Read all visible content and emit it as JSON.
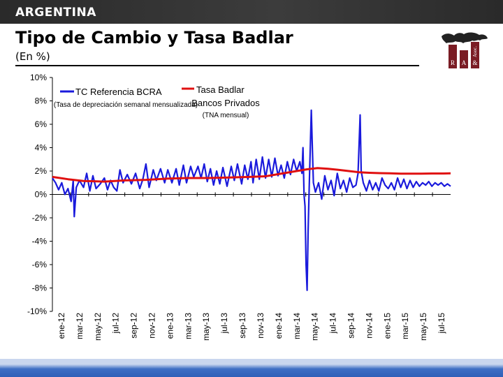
{
  "header": {
    "country": "ARGENTINA",
    "title": "Tipo de Cambio y Tasa Badlar",
    "subtitle": "(En %)"
  },
  "logo": {
    "letters": [
      "R",
      "A",
      "&",
      "Asoc."
    ]
  },
  "chart_data": {
    "type": "line",
    "title": "Tipo de Cambio y Tasa Badlar",
    "ylim": [
      -10,
      10
    ],
    "y_ticks": [
      "10%",
      "8%",
      "6%",
      "4%",
      "2%",
      "0%",
      "-2%",
      "-4%",
      "-6%",
      "-8%",
      "-10%"
    ],
    "y_tick_values": [
      10,
      8,
      6,
      4,
      2,
      0,
      -2,
      -4,
      -6,
      -8,
      -10
    ],
    "x_ticks": [
      "ene-12",
      "mar-12",
      "may-12",
      "jul-12",
      "sep-12",
      "nov-12",
      "ene-13",
      "mar-13",
      "may-13",
      "jul-13",
      "sep-13",
      "nov-13",
      "ene-14",
      "mar-14",
      "may-14",
      "jul-14",
      "sep-14",
      "nov-14",
      "ene-15",
      "mar-15",
      "may-15",
      "jul-15"
    ],
    "grid": false,
    "legend_position": "top-left",
    "series": [
      {
        "name": "TC Referencia BCRA",
        "note": "(Tasa de depreciación semanal mensualizada)",
        "color": "#1a1adc",
        "points": [
          [
            0.0,
            1.4
          ],
          [
            0.3,
            1.0
          ],
          [
            0.6,
            0.4
          ],
          [
            0.9,
            1.0
          ],
          [
            1.2,
            0.0
          ],
          [
            1.5,
            0.5
          ],
          [
            1.8,
            -0.6
          ],
          [
            2.0,
            1.2
          ],
          [
            2.1,
            -1.9
          ],
          [
            2.3,
            0.6
          ],
          [
            2.6,
            1.2
          ],
          [
            3.0,
            0.6
          ],
          [
            3.3,
            1.8
          ],
          [
            3.6,
            0.3
          ],
          [
            3.9,
            1.6
          ],
          [
            4.2,
            0.5
          ],
          [
            4.6,
            0.9
          ],
          [
            5.0,
            1.4
          ],
          [
            5.3,
            0.4
          ],
          [
            5.6,
            1.2
          ],
          [
            5.9,
            0.6
          ],
          [
            6.2,
            0.3
          ],
          [
            6.5,
            2.1
          ],
          [
            6.8,
            1.0
          ],
          [
            7.2,
            1.7
          ],
          [
            7.6,
            0.9
          ],
          [
            8.0,
            1.8
          ],
          [
            8.4,
            0.5
          ],
          [
            8.7,
            1.3
          ],
          [
            9.0,
            2.6
          ],
          [
            9.3,
            0.6
          ],
          [
            9.7,
            2.1
          ],
          [
            10.0,
            1.2
          ],
          [
            10.4,
            2.2
          ],
          [
            10.8,
            1.0
          ],
          [
            11.1,
            2.1
          ],
          [
            11.5,
            1.0
          ],
          [
            11.9,
            2.2
          ],
          [
            12.2,
            0.8
          ],
          [
            12.6,
            2.5
          ],
          [
            12.9,
            1.0
          ],
          [
            13.3,
            2.4
          ],
          [
            13.6,
            1.5
          ],
          [
            14.0,
            2.4
          ],
          [
            14.3,
            1.4
          ],
          [
            14.6,
            2.6
          ],
          [
            14.9,
            1.1
          ],
          [
            15.2,
            2.2
          ],
          [
            15.5,
            0.8
          ],
          [
            15.8,
            2.0
          ],
          [
            16.1,
            0.9
          ],
          [
            16.4,
            2.3
          ],
          [
            16.8,
            0.7
          ],
          [
            17.2,
            2.4
          ],
          [
            17.5,
            1.2
          ],
          [
            17.8,
            2.6
          ],
          [
            18.2,
            0.9
          ],
          [
            18.5,
            2.5
          ],
          [
            18.8,
            1.3
          ],
          [
            19.1,
            2.8
          ],
          [
            19.3,
            1.0
          ],
          [
            19.6,
            3.0
          ],
          [
            19.9,
            1.3
          ],
          [
            20.2,
            3.2
          ],
          [
            20.5,
            1.4
          ],
          [
            20.8,
            3.0
          ],
          [
            21.1,
            1.5
          ],
          [
            21.4,
            3.1
          ],
          [
            21.7,
            1.6
          ],
          [
            22.0,
            2.5
          ],
          [
            22.3,
            1.4
          ],
          [
            22.6,
            2.8
          ],
          [
            22.9,
            1.7
          ],
          [
            23.2,
            3.0
          ],
          [
            23.5,
            2.0
          ],
          [
            23.8,
            2.8
          ],
          [
            24.0,
            1.8
          ],
          [
            24.1,
            4.0
          ],
          [
            24.2,
            0.0
          ],
          [
            24.3,
            -1.0
          ],
          [
            24.4,
            -6.0
          ],
          [
            24.5,
            -8.2
          ],
          [
            24.6,
            -3.0
          ],
          [
            24.7,
            0.6
          ],
          [
            24.9,
            7.2
          ],
          [
            25.0,
            4.0
          ],
          [
            25.1,
            1.0
          ],
          [
            25.3,
            0.2
          ],
          [
            25.6,
            1.0
          ],
          [
            25.9,
            -0.4
          ],
          [
            26.2,
            1.6
          ],
          [
            26.5,
            0.4
          ],
          [
            26.8,
            1.2
          ],
          [
            27.1,
            -0.1
          ],
          [
            27.4,
            1.8
          ],
          [
            27.7,
            0.5
          ],
          [
            28.0,
            1.2
          ],
          [
            28.3,
            0.2
          ],
          [
            28.6,
            1.4
          ],
          [
            28.9,
            0.6
          ],
          [
            29.2,
            0.8
          ],
          [
            29.4,
            1.8
          ],
          [
            29.6,
            6.8
          ],
          [
            29.7,
            2.0
          ],
          [
            29.9,
            1.0
          ],
          [
            30.2,
            0.3
          ],
          [
            30.5,
            1.2
          ],
          [
            30.8,
            0.4
          ],
          [
            31.1,
            1.0
          ],
          [
            31.4,
            0.3
          ],
          [
            31.7,
            1.4
          ],
          [
            32.0,
            0.8
          ],
          [
            32.3,
            0.5
          ],
          [
            32.6,
            1.0
          ],
          [
            32.9,
            0.4
          ],
          [
            33.2,
            1.4
          ],
          [
            33.5,
            0.6
          ],
          [
            33.8,
            1.3
          ],
          [
            34.1,
            0.5
          ],
          [
            34.4,
            1.2
          ],
          [
            34.7,
            0.6
          ],
          [
            35.0,
            1.1
          ],
          [
            35.3,
            0.7
          ],
          [
            35.6,
            1.0
          ],
          [
            35.9,
            0.8
          ],
          [
            36.2,
            1.1
          ],
          [
            36.5,
            0.7
          ],
          [
            36.8,
            1.0
          ],
          [
            37.1,
            0.8
          ],
          [
            37.4,
            1.0
          ],
          [
            37.7,
            0.7
          ],
          [
            38.0,
            0.9
          ],
          [
            38.3,
            0.7
          ]
        ]
      },
      {
        "name": "Tasa Badlar Bancos Privados",
        "note": "(TNA mensual)",
        "color": "#e01010",
        "points": [
          [
            0.0,
            1.5
          ],
          [
            1.5,
            1.3
          ],
          [
            3.0,
            1.15
          ],
          [
            5.0,
            1.1
          ],
          [
            7.0,
            1.2
          ],
          [
            9.0,
            1.25
          ],
          [
            11.0,
            1.35
          ],
          [
            13.0,
            1.4
          ],
          [
            15.0,
            1.4
          ],
          [
            17.0,
            1.45
          ],
          [
            19.0,
            1.5
          ],
          [
            20.5,
            1.55
          ],
          [
            21.5,
            1.7
          ],
          [
            22.5,
            1.85
          ],
          [
            23.5,
            2.0
          ],
          [
            24.5,
            2.15
          ],
          [
            25.5,
            2.25
          ],
          [
            26.5,
            2.2
          ],
          [
            27.5,
            2.1
          ],
          [
            28.5,
            2.0
          ],
          [
            29.5,
            1.9
          ],
          [
            30.5,
            1.85
          ],
          [
            31.5,
            1.82
          ],
          [
            32.5,
            1.8
          ],
          [
            33.5,
            1.78
          ],
          [
            34.5,
            1.78
          ],
          [
            35.5,
            1.78
          ],
          [
            36.5,
            1.79
          ],
          [
            37.5,
            1.79
          ],
          [
            38.3,
            1.8
          ]
        ]
      }
    ],
    "x_domain": [
      0,
      38.3
    ]
  }
}
